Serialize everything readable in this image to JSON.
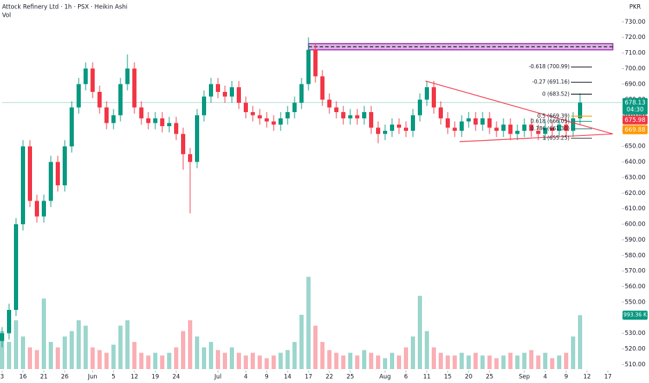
{
  "chart_data": {
    "type": "candlestick",
    "title": "Attock Refinery Ltd · 1h · PSX · Heikin Ashi",
    "volume_title": "Vol",
    "currency": "PKR",
    "countdown": "04:30",
    "up_color": "#089981",
    "down_color": "#f23645",
    "ylim": [
      507,
      744
    ],
    "xlim": [
      0,
      89
    ],
    "vlim": [
      0,
      6800
    ],
    "grid": false,
    "yticks": [
      {
        "value": 510,
        "label": "510.00"
      },
      {
        "value": 520,
        "label": "520.00"
      },
      {
        "value": 530,
        "label": "530.00"
      },
      {
        "value": 540,
        "label": "540.00"
      },
      {
        "value": 550,
        "label": "550.00"
      },
      {
        "value": 560,
        "label": "560.00"
      },
      {
        "value": 570,
        "label": "570.00"
      },
      {
        "value": 580,
        "label": "580.00"
      },
      {
        "value": 590,
        "label": "590.00"
      },
      {
        "value": 600,
        "label": "600.00"
      },
      {
        "value": 610,
        "label": "610.00"
      },
      {
        "value": 620,
        "label": "620.00"
      },
      {
        "value": 630,
        "label": "630.00"
      },
      {
        "value": 640,
        "label": "640.00"
      },
      {
        "value": 650,
        "label": "650.00"
      },
      {
        "value": 660,
        "label": "660.00"
      },
      {
        "value": 670,
        "label": "670.00"
      },
      {
        "value": 680,
        "label": "680.00"
      },
      {
        "value": 690,
        "label": "690.00"
      },
      {
        "value": 700,
        "label": "700.00"
      },
      {
        "value": 710,
        "label": "710.00"
      },
      {
        "value": 720,
        "label": "720.00"
      },
      {
        "value": 730,
        "label": "730.00"
      }
    ],
    "xticks": [
      {
        "value": 0,
        "label": "3"
      },
      {
        "value": 3,
        "label": "16"
      },
      {
        "value": 6,
        "label": "21"
      },
      {
        "value": 9,
        "label": "26"
      },
      {
        "value": 13,
        "label": "Jun"
      },
      {
        "value": 16,
        "label": "5"
      },
      {
        "value": 19,
        "label": "12"
      },
      {
        "value": 22,
        "label": "19"
      },
      {
        "value": 25,
        "label": "24"
      },
      {
        "value": 31,
        "label": "Jul"
      },
      {
        "value": 35,
        "label": "4"
      },
      {
        "value": 38,
        "label": "9"
      },
      {
        "value": 41,
        "label": "14"
      },
      {
        "value": 44,
        "label": "17"
      },
      {
        "value": 47,
        "label": "22"
      },
      {
        "value": 50,
        "label": "25"
      },
      {
        "value": 55,
        "label": "Aug"
      },
      {
        "value": 58,
        "label": "6"
      },
      {
        "value": 61,
        "label": "11"
      },
      {
        "value": 64,
        "label": "15"
      },
      {
        "value": 67,
        "label": "20"
      },
      {
        "value": 70,
        "label": "25"
      },
      {
        "value": 75,
        "label": "Sep"
      },
      {
        "value": 78,
        "label": "4"
      },
      {
        "value": 81,
        "label": "9"
      },
      {
        "value": 84,
        "label": "12"
      },
      {
        "value": 87,
        "label": "17"
      }
    ],
    "ohlc": [
      [
        525,
        534,
        521,
        530
      ],
      [
        530,
        549,
        526,
        545
      ],
      [
        545,
        604,
        541,
        600
      ],
      [
        600,
        654,
        596,
        650
      ],
      [
        650,
        654,
        611,
        615
      ],
      [
        615,
        619,
        601,
        605
      ],
      [
        605,
        619,
        601,
        615
      ],
      [
        615,
        644,
        611,
        640
      ],
      [
        640,
        644,
        621,
        625
      ],
      [
        625,
        654,
        621,
        650
      ],
      [
        650,
        679,
        646,
        675
      ],
      [
        675,
        694,
        671,
        690
      ],
      [
        690,
        704,
        686,
        700
      ],
      [
        700,
        704,
        681,
        685
      ],
      [
        685,
        689,
        671,
        675
      ],
      [
        675,
        679,
        661,
        665
      ],
      [
        665,
        674,
        661,
        670
      ],
      [
        670,
        694,
        666,
        690
      ],
      [
        690,
        709,
        686,
        700
      ],
      [
        700,
        704,
        671,
        675
      ],
      [
        675,
        679,
        664,
        668
      ],
      [
        668,
        672,
        661,
        665
      ],
      [
        665,
        672,
        661,
        668
      ],
      [
        668,
        672,
        659,
        663
      ],
      [
        663,
        669,
        659,
        665
      ],
      [
        665,
        669,
        654,
        658
      ],
      [
        658,
        662,
        635,
        645
      ],
      [
        645,
        649,
        607,
        640
      ],
      [
        640,
        674,
        636,
        670
      ],
      [
        670,
        686,
        666,
        682
      ],
      [
        682,
        694,
        678,
        690
      ],
      [
        690,
        694,
        681,
        685
      ],
      [
        685,
        689,
        678,
        682
      ],
      [
        682,
        692,
        678,
        688
      ],
      [
        688,
        692,
        674,
        678
      ],
      [
        678,
        682,
        668,
        672
      ],
      [
        672,
        676,
        666,
        670
      ],
      [
        670,
        674,
        664,
        668
      ],
      [
        668,
        672,
        662,
        666
      ],
      [
        666,
        670,
        660,
        664
      ],
      [
        664,
        672,
        660,
        668
      ],
      [
        668,
        676,
        664,
        672
      ],
      [
        672,
        682,
        668,
        678
      ],
      [
        678,
        694,
        674,
        690
      ],
      [
        690,
        720,
        686,
        712
      ],
      [
        712,
        716,
        691,
        695
      ],
      [
        695,
        699,
        676,
        680
      ],
      [
        680,
        684,
        671,
        675
      ],
      [
        675,
        679,
        668,
        672
      ],
      [
        672,
        676,
        664,
        668
      ],
      [
        668,
        674,
        664,
        670
      ],
      [
        670,
        674,
        664,
        668
      ],
      [
        668,
        676,
        664,
        672
      ],
      [
        672,
        676,
        658,
        662
      ],
      [
        662,
        666,
        652,
        658
      ],
      [
        658,
        664,
        654,
        660
      ],
      [
        660,
        668,
        656,
        664
      ],
      [
        664,
        668,
        658,
        662
      ],
      [
        662,
        666,
        656,
        660
      ],
      [
        660,
        674,
        656,
        670
      ],
      [
        670,
        684,
        666,
        680
      ],
      [
        680,
        692,
        676,
        688
      ],
      [
        688,
        692,
        671,
        675
      ],
      [
        675,
        679,
        664,
        668
      ],
      [
        668,
        672,
        658,
        662
      ],
      [
        662,
        666,
        656,
        660
      ],
      [
        660,
        670,
        656,
        666
      ],
      [
        666,
        672,
        662,
        668
      ],
      [
        668,
        672,
        660,
        664
      ],
      [
        664,
        672,
        660,
        668
      ],
      [
        668,
        672,
        658,
        662
      ],
      [
        662,
        666,
        656,
        660
      ],
      [
        660,
        668,
        656,
        664
      ],
      [
        664,
        668,
        654,
        658
      ],
      [
        658,
        664,
        654,
        660
      ],
      [
        660,
        668,
        656,
        664
      ],
      [
        664,
        668,
        656,
        660
      ],
      [
        660,
        664,
        654,
        658
      ],
      [
        658,
        666,
        654,
        662
      ],
      [
        662,
        666,
        656,
        660
      ],
      [
        660,
        668,
        656,
        664
      ],
      [
        664,
        668,
        656,
        660
      ],
      [
        660,
        672,
        656,
        668
      ],
      [
        668,
        684,
        664,
        678.13
      ]
    ],
    "volume": [
      700,
      500,
      900,
      600,
      400,
      350,
      1300,
      500,
      400,
      600,
      700,
      900,
      800,
      400,
      350,
      300,
      450,
      800,
      900,
      500,
      300,
      250,
      300,
      250,
      300,
      400,
      700,
      900,
      600,
      400,
      500,
      350,
      300,
      400,
      300,
      250,
      300,
      250,
      200,
      250,
      300,
      350,
      500,
      1000,
      1700,
      800,
      500,
      350,
      300,
      250,
      300,
      250,
      350,
      300,
      250,
      200,
      300,
      250,
      400,
      600,
      1350,
      700,
      400,
      300,
      250,
      250,
      300,
      250,
      300,
      250,
      250,
      200,
      250,
      300,
      250,
      300,
      350,
      250,
      300,
      200,
      250,
      300,
      600,
      993.36
    ],
    "volume_label": "993.36 K",
    "zone": {
      "low": 712,
      "high": 716,
      "line": 714,
      "start": 44,
      "end": 87.7,
      "color": "#9c27b0"
    },
    "trendlines": {
      "color": "#f23645",
      "lines": [
        [
          [
            60.8,
            692
          ],
          [
            87.7,
            658
          ]
        ],
        [
          [
            65.7,
            653
          ],
          [
            87.7,
            658
          ]
        ]
      ]
    },
    "fib": [
      {
        "label": "-0.618 (700.99)",
        "value": 700.99,
        "color": "#131722"
      },
      {
        "label": "-0.27 (691.16)",
        "value": 691.16,
        "color": "#131722"
      },
      {
        "label": "0 (683.52)",
        "value": 683.52,
        "color": "#131722"
      },
      {
        "label": "0.5 (669.39)",
        "value": 669.39,
        "color": "#ff9800"
      },
      {
        "label": "0.618 (666.05)",
        "value": 666.05,
        "color": "#089981"
      },
      {
        "label": "0.786 (661.30)",
        "value": 661.3,
        "color": "#2e7d73"
      },
      {
        "label": "1 (655.25)",
        "value": 655.25,
        "color": "#555555"
      }
    ],
    "badges": [
      {
        "value": 678.13,
        "color": "#089981"
      },
      {
        "value": 675.98,
        "color": "#f23645"
      },
      {
        "value": 669.88,
        "color": "#ff9800"
      }
    ]
  }
}
